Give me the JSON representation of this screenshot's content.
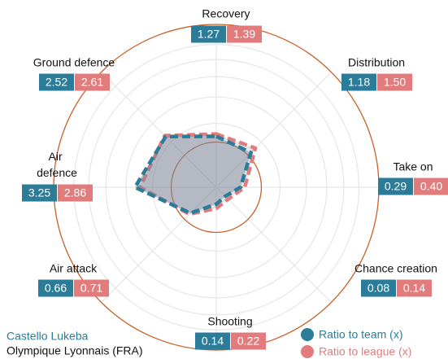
{
  "chart_data": {
    "type": "radar",
    "categories": [
      "Recovery",
      "Distribution",
      "Take on",
      "Chance creation",
      "Shooting",
      "Air attack",
      "Air defence",
      "Ground defence"
    ],
    "series": [
      {
        "name": "Ratio to team (x)",
        "color": "#2b7c99",
        "values": [
          1.27,
          1.18,
          0.29,
          0.08,
          0.14,
          0.66,
          3.25,
          2.52
        ],
        "value_labels": [
          "1.27",
          "1.18",
          "0.29",
          "0.08",
          "0.14",
          "0.66",
          "3.25",
          "2.52"
        ]
      },
      {
        "name": "Ratio to league (x)",
        "color": "#e27c7c",
        "values": [
          1.39,
          1.5,
          0.4,
          0.14,
          0.22,
          0.71,
          2.86,
          2.61
        ],
        "value_labels": [
          "1.39",
          "1.50",
          "0.40",
          "0.14",
          "0.22",
          "0.71",
          "2.86",
          "2.61"
        ]
      }
    ],
    "scale": "sqrt",
    "rlim": [
      0,
      13
    ],
    "rticks": [
      2,
      4,
      6,
      8,
      10
    ],
    "reference": 1,
    "reference_color": "#c8602a",
    "player": "Castello Lukeba",
    "team": "Olympique Lyonnais (FRA)"
  }
}
